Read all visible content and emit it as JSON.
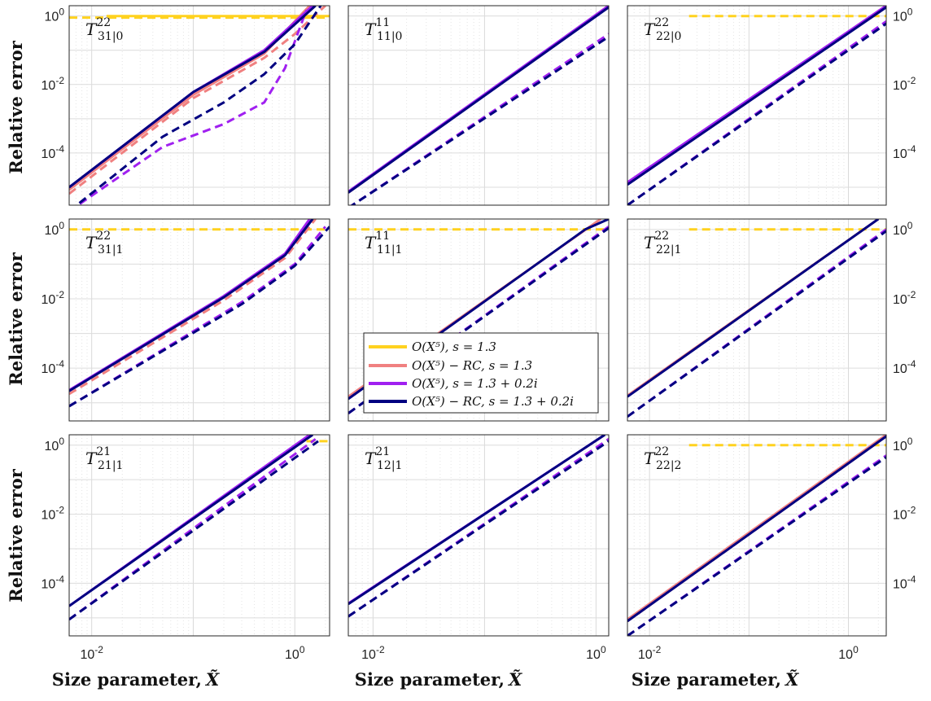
{
  "figure": {
    "ylabel": "Relative error",
    "xlabel": "Size parameter,",
    "xlabel_symbol": "X̃"
  },
  "legend": [
    {
      "label": "O(X⁵),  s = 1.3",
      "color": "#FFD21F"
    },
    {
      "label": "O(X⁵) − RC,  s = 1.3",
      "color": "#F08080"
    },
    {
      "label": "O(X⁵),  s = 1.3 + 0.2i",
      "color": "#A020F0"
    },
    {
      "label": "O(X⁵) − RC,  s = 1.3 + 0.2i",
      "color": "#000080"
    }
  ],
  "chart_data": [
    {
      "type": "line",
      "title": "T₃₁|₀²²",
      "title_main": "T",
      "title_sup": "22",
      "title_sub": "31|0",
      "xscale": "log",
      "yscale": "log",
      "xlim": [
        0.006,
        2.2
      ],
      "ylim": [
        3e-06,
        2
      ],
      "grid": true,
      "xticks": [
        "10-2",
        "100"
      ],
      "yticks": [
        "100",
        "10-2",
        "10-4"
      ],
      "series": [
        {
          "name": "O(X⁵),  s = 1.3",
          "style": "solid",
          "x": [
            0.014,
            2.2
          ],
          "y": [
            1,
            1
          ]
        },
        {
          "name": "O(X⁵),  s = 1.3",
          "style": "dashed",
          "x": [
            0.006,
            2.2
          ],
          "y": [
            0.9,
            0.9
          ]
        },
        {
          "name": "O(X⁵) − RC,  s = 1.3",
          "style": "solid",
          "x": [
            0.006,
            0.1,
            0.5,
            1.4
          ],
          "y": [
            8.5e-06,
            0.005,
            0.08,
            2
          ]
        },
        {
          "name": "O(X⁵) − RC,  s = 1.3",
          "style": "dashed",
          "x": [
            0.006,
            0.1,
            0.5,
            1.0,
            2.0
          ],
          "y": [
            6.5e-06,
            0.004,
            0.06,
            0.3,
            2
          ]
        },
        {
          "name": "O(X⁵),  s = 1.3 + 0.2i",
          "style": "solid",
          "x": [
            0.006,
            0.1,
            0.5,
            1.5
          ],
          "y": [
            1e-05,
            0.006,
            0.1,
            2
          ]
        },
        {
          "name": "O(X⁵),  s = 1.3 + 0.2i",
          "style": "dashed",
          "x": [
            0.006,
            0.05,
            0.2,
            0.5,
            0.8,
            1.3
          ],
          "y": [
            2e-06,
            0.00015,
            0.0007,
            0.003,
            0.03,
            1.5
          ]
        },
        {
          "name": "O(X⁵) − RC,  s = 1.3 + 0.2i",
          "style": "solid",
          "x": [
            0.006,
            0.1,
            0.5,
            1.6
          ],
          "y": [
            1e-05,
            0.006,
            0.09,
            2
          ]
        },
        {
          "name": "O(X⁵) − RC,  s = 1.3 + 0.2i",
          "style": "dashed",
          "x": [
            0.006,
            0.05,
            0.2,
            0.5,
            1.0,
            1.8
          ],
          "y": [
            2e-06,
            0.0003,
            0.003,
            0.02,
            0.15,
            2
          ]
        }
      ]
    },
    {
      "type": "line",
      "title": "T₁₁|₀¹¹",
      "title_main": "T",
      "title_sup": "11",
      "title_sub": "11|0",
      "xscale": "log",
      "yscale": "log",
      "xlim": [
        0.006,
        1.3
      ],
      "ylim": [
        3e-06,
        2
      ],
      "grid": true,
      "xticks": [
        "10-2",
        "100"
      ],
      "yticks": [
        "100",
        "10-2",
        "10-4"
      ],
      "series": [
        {
          "name": "O(X⁵) − RC,  s = 1.3",
          "style": "solid",
          "x": [
            0.006,
            1.3
          ],
          "y": [
            7e-06,
            2
          ]
        },
        {
          "name": "O(X⁵),  s = 1.3 + 0.2i",
          "style": "solid",
          "x": [
            0.006,
            1.3
          ],
          "y": [
            7.5e-06,
            2
          ]
        },
        {
          "name": "O(X⁵) − RC,  s = 1.3 + 0.2i",
          "style": "solid",
          "x": [
            0.006,
            1.3
          ],
          "y": [
            7e-06,
            1.8
          ]
        },
        {
          "name": "O(X⁵),  s = 1.3 + 0.2i",
          "style": "dashed",
          "x": [
            0.006,
            1.3
          ],
          "y": [
            2.5e-06,
            0.3
          ]
        },
        {
          "name": "O(X⁵) − RC,  s = 1.3 + 0.2i",
          "style": "dashed",
          "x": [
            0.006,
            1.3
          ],
          "y": [
            2.5e-06,
            0.25
          ]
        }
      ]
    },
    {
      "type": "line",
      "title": "T₂₂|₀²²",
      "title_main": "T",
      "title_sup": "22",
      "title_sub": "22|0",
      "xscale": "log",
      "yscale": "log",
      "xlim": [
        0.006,
        2.4
      ],
      "ylim": [
        3e-06,
        2
      ],
      "grid": true,
      "xticks": [
        "10-2",
        "100"
      ],
      "yticks": [
        "100",
        "10-2",
        "10-4"
      ],
      "series": [
        {
          "name": "O(X⁵),  s = 1.3",
          "style": "dashed",
          "x": [
            0.025,
            2.4
          ],
          "y": [
            1,
            1
          ]
        },
        {
          "name": "O(X⁵) − RC,  s = 1.3",
          "style": "solid",
          "x": [
            0.006,
            2.4
          ],
          "y": [
            1.3e-05,
            2
          ]
        },
        {
          "name": "O(X⁵),  s = 1.3 + 0.2i",
          "style": "solid",
          "x": [
            0.006,
            2.4
          ],
          "y": [
            1.4e-05,
            2
          ]
        },
        {
          "name": "O(X⁵) − RC,  s = 1.3 + 0.2i",
          "style": "solid",
          "x": [
            0.006,
            2.4
          ],
          "y": [
            1.2e-05,
            1.8
          ]
        },
        {
          "name": "O(X⁵),  s = 1.3 + 0.2i",
          "style": "dashed",
          "x": [
            0.006,
            2.4
          ],
          "y": [
            3e-06,
            0.7
          ]
        },
        {
          "name": "O(X⁵) − RC,  s = 1.3 + 0.2i",
          "style": "dashed",
          "x": [
            0.006,
            2.4
          ],
          "y": [
            3e-06,
            0.6
          ]
        }
      ]
    },
    {
      "type": "line",
      "title": "T₃₁|₁²²",
      "title_main": "T",
      "title_sup": "22",
      "title_sub": "31|1",
      "xscale": "log",
      "yscale": "log",
      "xlim": [
        0.006,
        2.2
      ],
      "ylim": [
        3e-06,
        2
      ],
      "grid": true,
      "xticks": [
        "10-2",
        "100"
      ],
      "yticks": [
        "100",
        "10-2",
        "10-4"
      ],
      "series": [
        {
          "name": "O(X⁵),  s = 1.3",
          "style": "dashed",
          "x": [
            0.006,
            2.2
          ],
          "y": [
            1,
            1
          ]
        },
        {
          "name": "O(X⁵) − RC,  s = 1.3",
          "style": "dashed",
          "x": [
            0.006,
            0.2,
            0.8,
            1.6
          ],
          "y": [
            1.8e-05,
            0.009,
            0.15,
            2
          ]
        },
        {
          "name": "O(X⁵),  s = 1.3 + 0.2i",
          "style": "solid",
          "x": [
            0.006,
            0.2,
            0.8,
            1.4
          ],
          "y": [
            2.3e-05,
            0.012,
            0.2,
            2
          ]
        },
        {
          "name": "O(X⁵) − RC,  s = 1.3 + 0.2i",
          "style": "solid",
          "x": [
            0.006,
            0.2,
            0.8,
            1.5
          ],
          "y": [
            2.2e-05,
            0.011,
            0.18,
            2
          ]
        },
        {
          "name": "O(X⁵),  s = 1.3 + 0.2i",
          "style": "dashed",
          "x": [
            0.006,
            0.3,
            1.0,
            2.0
          ],
          "y": [
            8e-06,
            0.008,
            0.1,
            1.2
          ]
        },
        {
          "name": "O(X⁵) − RC,  s = 1.3 + 0.2i",
          "style": "dashed",
          "x": [
            0.006,
            0.3,
            1.0,
            2.2
          ],
          "y": [
            8e-06,
            0.007,
            0.09,
            1.2
          ]
        }
      ]
    },
    {
      "type": "line",
      "title": "T₁₁|₁¹¹",
      "title_main": "T",
      "title_sup": "11",
      "title_sub": "11|1",
      "xscale": "log",
      "yscale": "log",
      "xlim": [
        0.006,
        1.3
      ],
      "ylim": [
        3e-06,
        2
      ],
      "grid": true,
      "xticks": [
        "10-2",
        "100"
      ],
      "yticks": [
        "100",
        "10-2",
        "10-4"
      ],
      "series": [
        {
          "name": "O(X⁵),  s = 1.3",
          "style": "dashed",
          "x": [
            0.006,
            1.3
          ],
          "y": [
            1,
            1
          ]
        },
        {
          "name": "O(X⁵) − RC,  s = 1.3",
          "style": "solid",
          "x": [
            0.006,
            1.1
          ],
          "y": [
            1.5e-05,
            2
          ]
        },
        {
          "name": "O(X⁵) − RC,  s = 1.3 + 0.2i",
          "style": "solid",
          "x": [
            0.006,
            0.8,
            1.3
          ],
          "y": [
            1.3e-05,
            1,
            2
          ]
        },
        {
          "name": "O(X⁵),  s = 1.3 + 0.2i",
          "style": "dashed",
          "x": [
            0.006,
            1.3
          ],
          "y": [
            5e-06,
            1.2
          ]
        },
        {
          "name": "O(X⁵) − RC,  s = 1.3 + 0.2i",
          "style": "dashed",
          "x": [
            0.006,
            1.3
          ],
          "y": [
            5e-06,
            1.1
          ]
        }
      ]
    },
    {
      "type": "line",
      "title": "T₂₂|₁²²",
      "title_main": "T",
      "title_sup": "22",
      "title_sub": "22|1",
      "xscale": "log",
      "yscale": "log",
      "xlim": [
        0.006,
        2.4
      ],
      "ylim": [
        3e-06,
        2
      ],
      "grid": true,
      "xticks": [
        "10-2",
        "100"
      ],
      "yticks": [
        "100",
        "10-2",
        "10-4"
      ],
      "series": [
        {
          "name": "O(X⁵),  s = 1.3",
          "style": "dashed",
          "x": [
            0.025,
            2.4
          ],
          "y": [
            1,
            1
          ]
        },
        {
          "name": "O(X⁵) − RC,  s = 1.3",
          "style": "solid",
          "x": [
            0.006,
            2.0
          ],
          "y": [
            1.6e-05,
            2
          ]
        },
        {
          "name": "O(X⁵) − RC,  s = 1.3 + 0.2i",
          "style": "solid",
          "x": [
            0.006,
            2.0
          ],
          "y": [
            1.5e-05,
            2
          ]
        },
        {
          "name": "O(X⁵),  s = 1.3 + 0.2i",
          "style": "dashed",
          "x": [
            0.006,
            2.4
          ],
          "y": [
            4e-06,
            1
          ]
        },
        {
          "name": "O(X⁵) − RC,  s = 1.3 + 0.2i",
          "style": "dashed",
          "x": [
            0.006,
            2.4
          ],
          "y": [
            4e-06,
            0.9
          ]
        }
      ]
    },
    {
      "type": "line",
      "title": "T₂₁|₁²¹",
      "title_main": "T",
      "title_sup": "21",
      "title_sub": "21|1",
      "xscale": "log",
      "yscale": "log",
      "xlim": [
        0.006,
        2.2
      ],
      "ylim": [
        3e-06,
        2
      ],
      "grid": true,
      "xticks": [
        "10-2",
        "100"
      ],
      "yticks": [
        "100",
        "10-2",
        "10-4"
      ],
      "series": [
        {
          "name": "O(X⁵),  s = 1.3 + 0.2i",
          "style": "solid",
          "x": [
            0.006,
            1.4
          ],
          "y": [
            2.2e-05,
            2
          ]
        },
        {
          "name": "O(X⁵) − RC,  s = 1.3 + 0.2i",
          "style": "solid",
          "x": [
            0.006,
            1.5
          ],
          "y": [
            2.2e-05,
            2
          ]
        },
        {
          "name": "O(X⁵),  s = 1.3",
          "style": "dashed",
          "x": [
            1.3,
            2.2
          ],
          "y": [
            1.3,
            1.3
          ]
        },
        {
          "name": "O(X⁵),  s = 1.3 + 0.2i",
          "style": "dashed",
          "x": [
            0.006,
            1.6
          ],
          "y": [
            9e-06,
            1.5
          ]
        },
        {
          "name": "O(X⁵) − RC,  s = 1.3 + 0.2i",
          "style": "dashed",
          "x": [
            0.006,
            1.7
          ],
          "y": [
            9e-06,
            1.3
          ]
        }
      ]
    },
    {
      "type": "line",
      "title": "T₁₂|₁²¹",
      "title_main": "T",
      "title_sup": "21",
      "title_sub": "12|1",
      "xscale": "log",
      "yscale": "log",
      "xlim": [
        0.006,
        1.3
      ],
      "ylim": [
        3e-06,
        2
      ],
      "grid": true,
      "xticks": [
        "10-2",
        "100"
      ],
      "yticks": [
        "100",
        "10-2",
        "10-4"
      ],
      "series": [
        {
          "name": "O(X⁵),  s = 1.3 + 0.2i",
          "style": "solid",
          "x": [
            0.006,
            1.2
          ],
          "y": [
            2.6e-05,
            2
          ]
        },
        {
          "name": "O(X⁵) − RC,  s = 1.3 + 0.2i",
          "style": "solid",
          "x": [
            0.006,
            1.2
          ],
          "y": [
            2.5e-05,
            2
          ]
        },
        {
          "name": "O(X⁵),  s = 1.3 + 0.2i",
          "style": "dashed",
          "x": [
            0.006,
            1.3
          ],
          "y": [
            1.1e-05,
            1.5
          ]
        },
        {
          "name": "O(X⁵) − RC,  s = 1.3 + 0.2i",
          "style": "dashed",
          "x": [
            0.006,
            1.3
          ],
          "y": [
            1.1e-05,
            1.3
          ]
        }
      ]
    },
    {
      "type": "line",
      "title": "T₂₂|₂²²",
      "title_main": "T",
      "title_sup": "22",
      "title_sub": "22|2",
      "xscale": "log",
      "yscale": "log",
      "xlim": [
        0.006,
        2.4
      ],
      "ylim": [
        3e-06,
        2
      ],
      "grid": true,
      "xticks": [
        "10-2",
        "100"
      ],
      "yticks": [
        "100",
        "10-2",
        "10-4"
      ],
      "series": [
        {
          "name": "O(X⁵),  s = 1.3",
          "style": "dashed",
          "x": [
            0.025,
            2.4
          ],
          "y": [
            1,
            1
          ]
        },
        {
          "name": "O(X⁵) − RC,  s = 1.3",
          "style": "solid",
          "x": [
            0.006,
            2.4
          ],
          "y": [
            9e-06,
            2
          ]
        },
        {
          "name": "O(X⁵) − RC,  s = 1.3",
          "style": "dashed",
          "x": [
            0.006,
            2.4
          ],
          "y": [
            8e-06,
            1.8
          ]
        },
        {
          "name": "O(X⁵) − RC,  s = 1.3 + 0.2i",
          "style": "solid",
          "x": [
            0.006,
            2.4
          ],
          "y": [
            8e-06,
            1.8
          ]
        },
        {
          "name": "O(X⁵),  s = 1.3 + 0.2i",
          "style": "dashed",
          "x": [
            0.006,
            2.4
          ],
          "y": [
            3e-06,
            0.5
          ]
        },
        {
          "name": "O(X⁵) − RC,  s = 1.3 + 0.2i",
          "style": "dashed",
          "x": [
            0.006,
            2.4
          ],
          "y": [
            3e-06,
            0.45
          ]
        }
      ]
    }
  ]
}
